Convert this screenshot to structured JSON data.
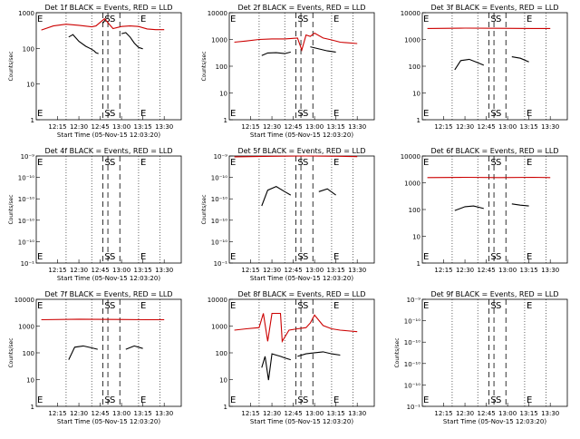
{
  "chart_data": [
    {
      "type": "line",
      "title": "Det 1f BLACK = Events, RED = LLD",
      "ylabel": "Counts/sec",
      "xlabel": "Start Time (05-Nov-15 12:03:20)",
      "x_tick_labels": [
        "12:15",
        "12:30",
        "12:45",
        "13:00",
        "13:15",
        "13:30"
      ],
      "y_tick_labels": [
        "1",
        "10",
        "100",
        "1000"
      ],
      "ylim": [
        1,
        1200
      ],
      "log_y": true,
      "markers": [
        "S",
        "S",
        "E"
      ],
      "series": [
        {
          "color": "#000000",
          "x": [
            12.38,
            12.43,
            12.5,
            12.58,
            12.64,
            12.68,
            12.7,
            12.73
          ],
          "y": [
            240,
            280,
            180,
            130,
            110,
            95,
            85,
            80
          ]
        },
        {
          "color": "#000000",
          "x": [
            12.78,
            12.82
          ],
          "y": [
            600,
            800
          ]
        },
        {
          "color": "#000000",
          "x": [
            13.0,
            13.05,
            13.1,
            13.15,
            13.2,
            13.25
          ],
          "y": [
            300,
            320,
            240,
            160,
            120,
            110
          ]
        },
        {
          "color": "#cc0000",
          "x": [
            12.06,
            12.2,
            12.35,
            12.5,
            12.65,
            12.7,
            12.8,
            12.9,
            13.0,
            13.1,
            13.2,
            13.3,
            13.4,
            13.5
          ],
          "y": [
            380,
            500,
            560,
            520,
            470,
            500,
            800,
            420,
            480,
            500,
            480,
            410,
            390,
            390
          ]
        }
      ]
    },
    {
      "type": "line",
      "title": "Det 2f BLACK = Events, RED = LLD",
      "ylabel": "Counts/sec",
      "xlabel": "Start Time (05-Nov-15 12:03:20)",
      "x_tick_labels": [
        "12:15",
        "12:30",
        "12:45",
        "13:00",
        "13:15",
        "13:30"
      ],
      "y_tick_labels": [
        "1",
        "10",
        "100",
        "1000",
        "10000"
      ],
      "ylim": [
        1,
        12000
      ],
      "log_y": true,
      "markers": [
        "S",
        "S",
        "E"
      ],
      "series": [
        {
          "color": "#000000",
          "x": [
            12.38,
            12.45,
            12.55,
            12.65,
            12.72
          ],
          "y": [
            280,
            350,
            360,
            330,
            380
          ]
        },
        {
          "color": "#000000",
          "x": [
            12.95,
            13.05,
            13.15,
            13.25
          ],
          "y": [
            600,
            500,
            420,
            380
          ]
        },
        {
          "color": "#cc0000",
          "x": [
            12.06,
            12.2,
            12.35,
            12.5,
            12.65,
            12.8,
            12.85,
            12.9,
            12.95,
            13.0,
            13.1,
            13.2,
            13.3,
            13.5
          ],
          "y": [
            900,
            1000,
            1150,
            1200,
            1200,
            1300,
            450,
            1700,
            1500,
            2000,
            1300,
            1100,
            900,
            800
          ]
        }
      ]
    },
    {
      "type": "line",
      "title": "Det 3f BLACK = Events, RED = LLD",
      "ylabel": "",
      "xlabel": "",
      "x_tick_labels": [
        "12:15",
        "12:30",
        "12:45",
        "13:00",
        "13:15",
        "13:30"
      ],
      "y_tick_labels": [
        "1",
        "10",
        "100",
        "1000",
        "10000"
      ],
      "ylim": [
        1,
        12000
      ],
      "log_y": true,
      "markers": [
        "S",
        "S",
        "E"
      ],
      "series": [
        {
          "color": "#000000",
          "x": [
            12.38,
            12.45,
            12.55,
            12.65,
            12.72
          ],
          "y": [
            80,
            180,
            200,
            150,
            120
          ]
        },
        {
          "color": "#000000",
          "x": [
            13.05,
            13.15,
            13.25
          ],
          "y": [
            250,
            220,
            160
          ]
        },
        {
          "color": "#cc0000",
          "x": [
            12.06,
            12.5,
            12.9,
            13.3,
            13.5
          ],
          "y": [
            3000,
            3100,
            3050,
            3000,
            3000
          ]
        }
      ]
    },
    {
      "type": "line",
      "title": "Det 4f BLACK = Events, RED = LLD",
      "ylabel": "Counts/sec",
      "xlabel": "Start Time (05-Nov-15 12:03:20)",
      "x_tick_labels": [
        "12:15",
        "12:30",
        "12:45",
        "13:00",
        "13:15",
        "13:30"
      ],
      "y_tick_labels": [
        "10⁻¹",
        "10⁻¹⁰",
        "10⁻¹⁰",
        "10⁻¹⁰",
        "10⁻¹⁰",
        "10⁻⁹"
      ],
      "ylim": [
        1,
        1000
      ],
      "log_y": true,
      "markers": [
        "S",
        "S",
        "E"
      ],
      "series": []
    },
    {
      "type": "line",
      "title": "Det 5f BLACK = Events, RED = LLD",
      "ylabel": "Counts/sec",
      "xlabel": "Start Time (05-Nov-15 12:03:20)",
      "x_tick_labels": [
        "12:15",
        "12:30",
        "12:45",
        "13:00",
        "13:15",
        "13:30"
      ],
      "y_tick_labels": [
        "10⁻¹",
        "10⁻¹⁰",
        "10⁻¹⁰",
        "10⁻¹⁰",
        "10⁻¹⁰",
        "10⁻⁹"
      ],
      "ylim": [
        1,
        1000
      ],
      "log_y": true,
      "markers": [
        "S",
        "S",
        "E"
      ],
      "series": [
        {
          "color": "#000000",
          "x": [
            12.38,
            12.45,
            12.55,
            12.65,
            12.72
          ],
          "y": [
            40,
            110,
            140,
            100,
            80
          ]
        },
        {
          "color": "#000000",
          "x": [
            13.05,
            13.15,
            13.25
          ],
          "y": [
            100,
            120,
            80
          ]
        },
        {
          "color": "#cc0000",
          "x": [
            12.06,
            12.5,
            12.9,
            13.3,
            13.5
          ],
          "y": [
            950,
            980,
            1000,
            980,
            960
          ]
        }
      ]
    },
    {
      "type": "line",
      "title": "Det 6f BLACK = Events, RED = LLD",
      "ylabel": "",
      "xlabel": "",
      "x_tick_labels": [
        "12:15",
        "12:30",
        "12:45",
        "13:00",
        "13:15",
        "13:30"
      ],
      "y_tick_labels": [
        "1",
        "10",
        "100",
        "1000",
        "10000"
      ],
      "ylim": [
        1,
        12000
      ],
      "log_y": true,
      "markers": [
        "S",
        "S",
        "E"
      ],
      "series": [
        {
          "color": "#000000",
          "x": [
            12.38,
            12.5,
            12.6,
            12.72
          ],
          "y": [
            100,
            140,
            150,
            120
          ]
        },
        {
          "color": "#000000",
          "x": [
            13.05,
            13.15,
            13.25
          ],
          "y": [
            180,
            160,
            150
          ]
        },
        {
          "color": "#cc0000",
          "x": [
            12.06,
            12.5,
            12.9,
            13.3,
            13.5
          ],
          "y": [
            1800,
            1850,
            1800,
            1850,
            1800
          ]
        }
      ]
    },
    {
      "type": "line",
      "title": "Det 7f BLACK = Events, RED = LLD",
      "ylabel": "Counts/sec",
      "xlabel": "Start Time (05-Nov-15 12:03:20)",
      "x_tick_labels": [
        "12:15",
        "12:30",
        "12:45",
        "13:00",
        "13:15",
        "13:30"
      ],
      "y_tick_labels": [
        "1",
        "10",
        "100",
        "1000",
        "10000"
      ],
      "ylim": [
        1,
        12000
      ],
      "log_y": true,
      "markers": [
        "S",
        "S",
        "E"
      ],
      "series": [
        {
          "color": "#000000",
          "x": [
            12.38,
            12.45,
            12.55,
            12.65,
            12.72
          ],
          "y": [
            60,
            180,
            200,
            170,
            150
          ]
        },
        {
          "color": "#000000",
          "x": [
            13.05,
            13.15,
            13.25
          ],
          "y": [
            150,
            200,
            160
          ]
        },
        {
          "color": "#cc0000",
          "x": [
            12.06,
            12.5,
            12.9,
            13.3,
            13.5
          ],
          "y": [
            2000,
            2100,
            2050,
            2000,
            2000
          ]
        }
      ]
    },
    {
      "type": "line",
      "title": "Det 8f BLACK = Events, RED = LLD",
      "ylabel": "",
      "xlabel": "Start Time (05-Nov-15 12:03:20)",
      "x_tick_labels": [
        "12:15",
        "12:30",
        "12:45",
        "13:00",
        "13:15",
        "13:30"
      ],
      "y_tick_labels": [
        "1",
        "10",
        "100",
        "1000",
        "10000"
      ],
      "ylim": [
        1,
        12000
      ],
      "log_y": true,
      "markers": [
        "S",
        "S",
        "E"
      ],
      "series": [
        {
          "color": "#000000",
          "x": [
            12.38,
            12.42,
            12.46,
            12.5,
            12.55,
            12.6,
            12.65,
            12.72
          ],
          "y": [
            30,
            80,
            10,
            100,
            90,
            80,
            70,
            60
          ]
        },
        {
          "color": "#000000",
          "x": [
            12.8,
            12.9,
            13.0,
            13.1,
            13.2,
            13.3
          ],
          "y": [
            80,
            100,
            110,
            120,
            100,
            90
          ]
        },
        {
          "color": "#cc0000",
          "x": [
            12.06,
            12.2,
            12.35,
            12.4,
            12.45,
            12.5,
            12.6,
            12.62,
            12.7,
            12.8,
            12.9,
            12.95,
            13.0,
            13.1,
            13.2,
            13.3,
            13.5
          ],
          "y": [
            800,
            900,
            1000,
            3500,
            300,
            3500,
            3500,
            300,
            800,
            900,
            1000,
            1500,
            3000,
            1200,
            900,
            800,
            700
          ]
        }
      ]
    },
    {
      "type": "line",
      "title": "Det 9f BLACK = Events, RED = LLD",
      "ylabel": "Counts/sec",
      "xlabel": "Start Time (05-Nov-15 12:03:20)",
      "x_tick_labels": [
        "12:15",
        "12:30",
        "12:45",
        "13:00",
        "13:15",
        "13:30"
      ],
      "y_tick_labels": [
        "10⁻¹",
        "10⁻¹⁰",
        "10⁻¹⁰",
        "10⁻¹⁰",
        "10⁻¹⁰",
        "10⁻⁹"
      ],
      "ylim": [
        1,
        1000
      ],
      "log_y": true,
      "markers": [
        "S",
        "S",
        "E"
      ],
      "series": []
    }
  ]
}
